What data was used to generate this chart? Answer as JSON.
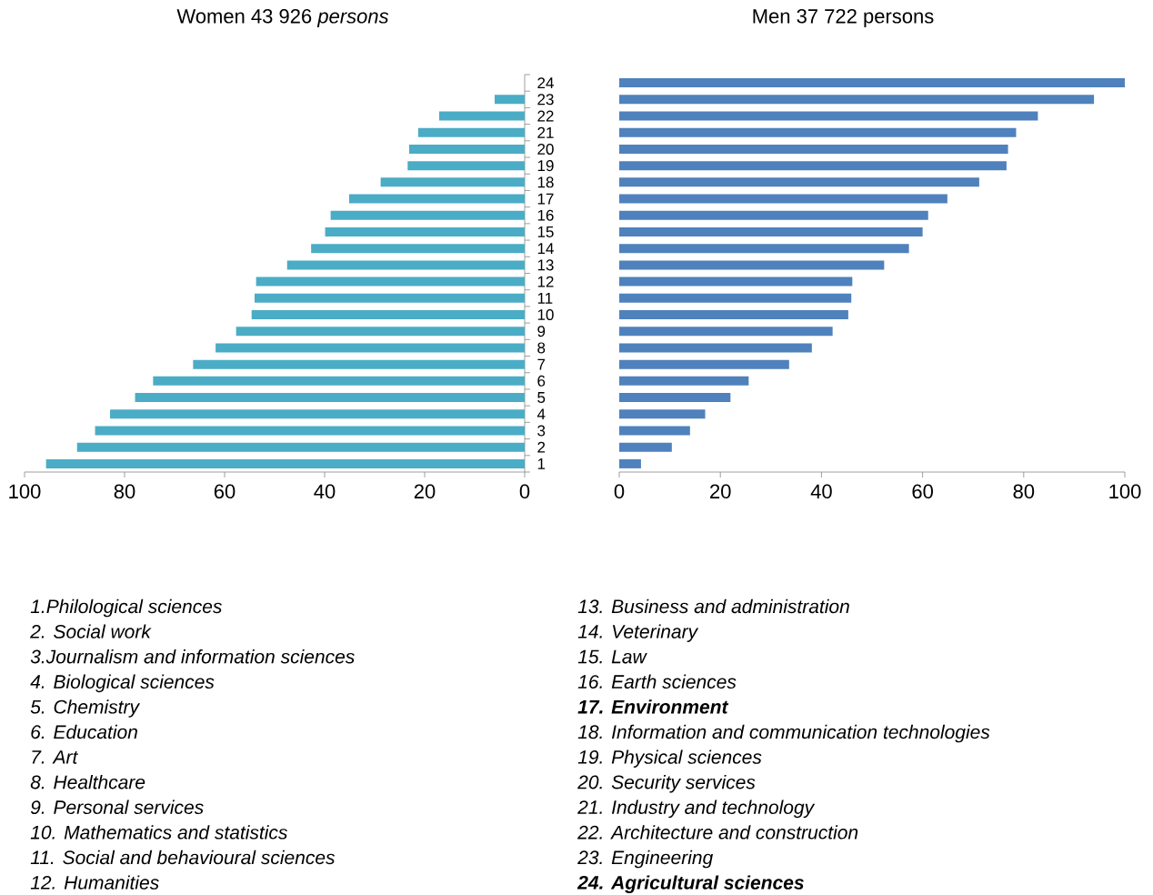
{
  "chart_data": [
    {
      "type": "bar",
      "orientation": "horizontal",
      "title": "Women  43 926 *persons*",
      "categories": [
        "24",
        "23",
        "22",
        "21",
        "20",
        "19",
        "18",
        "17",
        "16",
        "15",
        "14",
        "13",
        "12",
        "11",
        "10",
        "9",
        "8",
        "7",
        "6",
        "5",
        "4",
        "3",
        "2",
        "1"
      ],
      "values": [
        null,
        6.0,
        17.1,
        21.3,
        23.1,
        23.4,
        28.8,
        35.1,
        38.8,
        39.9,
        42.7,
        47.5,
        53.7,
        54.0,
        54.6,
        57.7,
        61.8,
        66.3,
        74.3,
        77.9,
        82.9,
        85.9,
        89.5,
        95.7
      ],
      "color": "#4bacc6",
      "xlim": [
        100,
        0
      ],
      "xticks": [
        0,
        20,
        40,
        60,
        80,
        100
      ],
      "annotations": [
        "1.Philological sciences",
        "2. Social work",
        "3.Journalism and information sciences",
        "4. Biological sciences",
        "5. Chemistry",
        "6. Education",
        "7. Art",
        "8. Healthcare",
        "9. Personal services",
        "10. Mathematics and statistics",
        "11. Social and behavioural sciences",
        "12. Humanities"
      ]
    },
    {
      "type": "bar",
      "orientation": "horizontal",
      "title": "Men 37 722 persons",
      "categories": [
        "24",
        "23",
        "22",
        "21",
        "20",
        "19",
        "18",
        "17",
        "16",
        "15",
        "14",
        "13",
        "12",
        "11",
        "10",
        "9",
        "8",
        "7",
        "6",
        "5",
        "4",
        "3",
        "2",
        "1"
      ],
      "values": [
        100,
        93.9,
        82.8,
        78.5,
        76.9,
        76.6,
        71.2,
        64.9,
        61.1,
        60.0,
        57.3,
        52.4,
        46.1,
        45.9,
        45.3,
        42.2,
        38.1,
        33.6,
        25.6,
        22.0,
        17.0,
        14.0,
        10.4,
        4.3
      ],
      "color": "#4f81bd",
      "xlim": [
        0,
        100
      ],
      "xticks": [
        0,
        20,
        40,
        60,
        80,
        100
      ],
      "tick_labels": "x",
      "annotations": [
        "13. Business and administration",
        "14. Veterinary",
        "15. Law",
        "16. Earth sciences",
        "**17. Environment**",
        "18. Information and communication technologies",
        "19. Physical sciences",
        "20. Security services",
        "21. Industry and technology",
        "22. Architecture and construction",
        "23. Engineering",
        "**24. Agricultural sciences**"
      ]
    }
  ]
}
